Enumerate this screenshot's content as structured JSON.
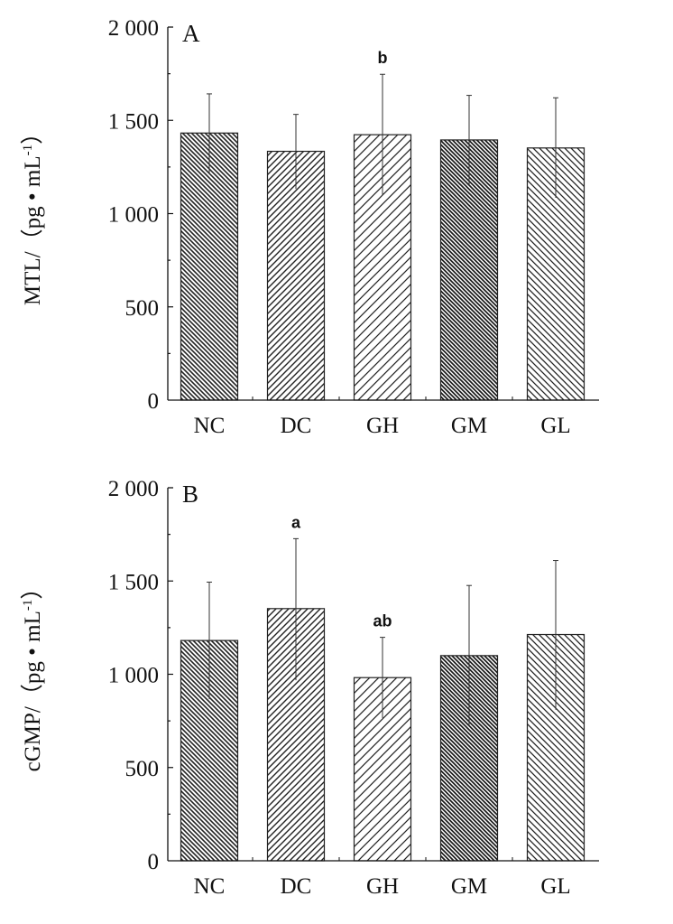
{
  "chart_data": [
    {
      "type": "bar",
      "panel_label": "A",
      "ylabel": "MTL/（pg • mL",
      "ylabel_sup": "-1",
      "ylabel_end": "）",
      "ylim": [
        0,
        2000
      ],
      "yticks": [
        0,
        500,
        1000,
        1500,
        2000
      ],
      "ytick_labels": [
        "0",
        "500",
        "1 000",
        "1 500",
        "2 000"
      ],
      "categories": [
        "NC",
        "DC",
        "GH",
        "GM",
        "GL"
      ],
      "values": [
        1432,
        1334,
        1423,
        1395,
        1352
      ],
      "error_upper": [
        1642,
        1532,
        1747,
        1634,
        1621
      ],
      "error_lower": [
        1218,
        1132,
        1097,
        1156,
        1085
      ],
      "annotations": [
        "",
        "",
        "b",
        "",
        ""
      ]
    },
    {
      "type": "bar",
      "panel_label": "B",
      "ylabel": "cGMP/（pg • mL",
      "ylabel_sup": "-1",
      "ylabel_end": "）",
      "ylim": [
        0,
        2000
      ],
      "yticks": [
        0,
        500,
        1000,
        1500,
        2000
      ],
      "ytick_labels": [
        "0",
        "500",
        "1 000",
        "1 500",
        "2 000"
      ],
      "categories": [
        "NC",
        "DC",
        "GH",
        "GM",
        "GL"
      ],
      "values": [
        1181,
        1352,
        982,
        1100,
        1213
      ],
      "error_upper": [
        1494,
        1727,
        1198,
        1476,
        1610
      ],
      "error_lower": [
        866,
        968,
        766,
        721,
        810
      ],
      "annotations": [
        "",
        "a",
        "ab",
        "",
        ""
      ]
    }
  ]
}
